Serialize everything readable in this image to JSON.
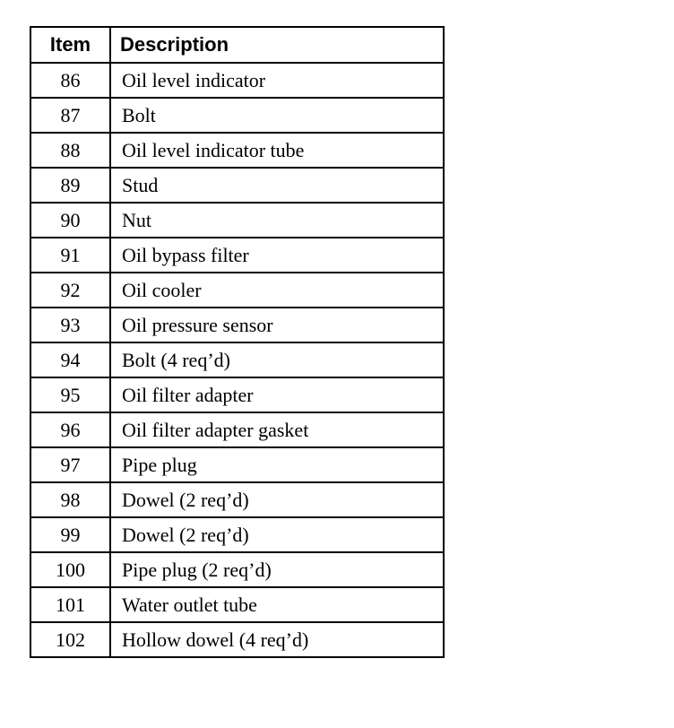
{
  "table": {
    "headers": [
      "Item",
      "Description"
    ],
    "rows": [
      {
        "item": "86",
        "description": "Oil level indicator"
      },
      {
        "item": "87",
        "description": "Bolt"
      },
      {
        "item": "88",
        "description": "Oil level indicator tube"
      },
      {
        "item": "89",
        "description": "Stud"
      },
      {
        "item": "90",
        "description": "Nut"
      },
      {
        "item": "91",
        "description": "Oil bypass filter"
      },
      {
        "item": "92",
        "description": "Oil cooler"
      },
      {
        "item": "93",
        "description": "Oil pressure sensor"
      },
      {
        "item": "94",
        "description": "Bolt (4 req’d)"
      },
      {
        "item": "95",
        "description": "Oil filter adapter"
      },
      {
        "item": "96",
        "description": "Oil filter adapter gasket"
      },
      {
        "item": "97",
        "description": "Pipe plug"
      },
      {
        "item": "98",
        "description": "Dowel (2 req’d)"
      },
      {
        "item": "99",
        "description": "Dowel (2 req’d)"
      },
      {
        "item": "100",
        "description": "Pipe plug (2 req’d)"
      },
      {
        "item": "101",
        "description": "Water outlet tube"
      },
      {
        "item": "102",
        "description": "Hollow dowel (4 req’d)"
      }
    ]
  }
}
